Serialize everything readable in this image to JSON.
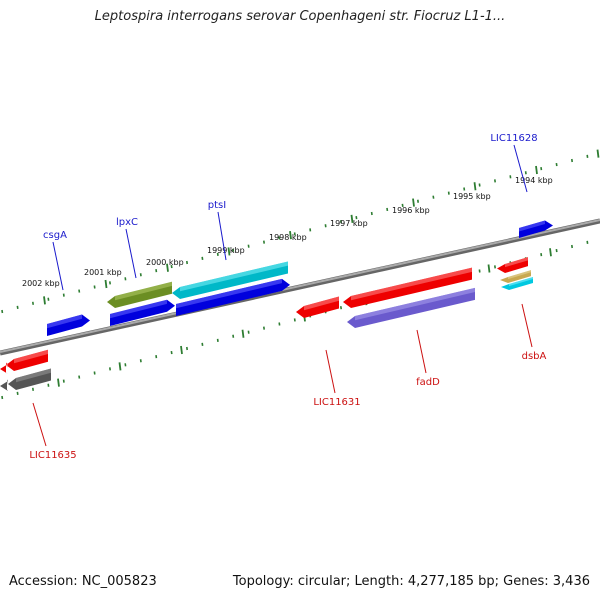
{
  "title": "Leptospira interrogans serovar Copenhageni str. Fiocruz L1-1...",
  "footer": {
    "accession": "Accession: NC_005823",
    "topology": "Topology: circular; Length: 4,277,185 bp; Genes: 3,436"
  },
  "colors": {
    "forward_label": "#1a1acc",
    "reverse_label": "#cc1111",
    "tick": "#2e7d32",
    "backbone": "#888888"
  },
  "kbp_ticks": {
    "upper": [
      "2002 kbp",
      "2001 kbp",
      "2000 kbp",
      "1999 kbp",
      "1998 kbp",
      "1997 kbp",
      "1996 kbp",
      "1995 kbp",
      "1994 kbp"
    ]
  },
  "gene_labels": {
    "forward": [
      "csgA",
      "lpxC",
      "ptsI",
      "LIC11628"
    ],
    "reverse": [
      "LIC11635",
      "LIC11631",
      "fadD",
      "dsbA"
    ]
  }
}
